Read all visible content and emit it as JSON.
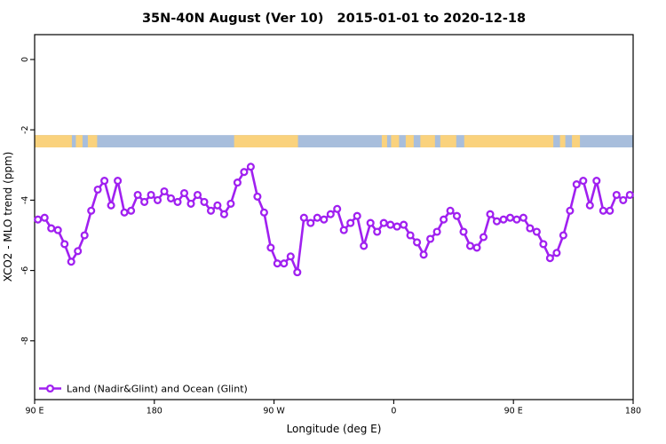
{
  "title": "35N-40N August (Ver 10)   2015-01-01 to 2020-12-18",
  "legend": {
    "label": "Land (Nadir&Glint) and Ocean (Glint)"
  },
  "colors": {
    "line": "#A020F0",
    "marker_fill": "#FFFFFF",
    "land": "#FAD27D",
    "ocean": "#A8BEDC",
    "axis": "#000000",
    "background": "#FFFFFF"
  },
  "chart_data": {
    "type": "line",
    "title": "35N-40N August (Ver 10)   2015-01-01 to 2020-12-18",
    "xlabel": "Longitude (deg E)",
    "ylabel": "XCO2 - MLO trend (ppm)",
    "x_axis": {
      "range_deg": [
        0,
        450
      ],
      "wrap_note": "axis spans 450 deg of longitude starting at 90E: 90E -> 180 -> 90W -> 0 -> 90E -> 180",
      "ticks": [
        {
          "pos": 0,
          "label": "90 E"
        },
        {
          "pos": 90,
          "label": "180"
        },
        {
          "pos": 180,
          "label": "90 W"
        },
        {
          "pos": 270,
          "label": "0"
        },
        {
          "pos": 360,
          "label": "90 E"
        },
        {
          "pos": 450,
          "label": "180"
        }
      ]
    },
    "y_axis": {
      "range": [
        0.7,
        -9.67
      ],
      "ticks": [
        "0",
        "-2",
        "-4",
        "-6",
        "-8"
      ],
      "tick_values": [
        0,
        -2,
        -4,
        -6,
        -8
      ],
      "grid": false
    },
    "series": [
      {
        "name": "Land (Nadir&Glint) and Ocean (Glint)",
        "marker": "open-circle",
        "x_deg": [
          2.5,
          7.5,
          12.5,
          17.5,
          22.5,
          27.5,
          32.5,
          37.5,
          42.5,
          47.5,
          52.5,
          57.5,
          62.5,
          67.5,
          72.5,
          77.5,
          82.5,
          87.5,
          92.5,
          97.5,
          102.5,
          107.5,
          112.5,
          117.5,
          122.5,
          127.5,
          132.5,
          137.5,
          142.5,
          147.5,
          152.5,
          157.5,
          162.5,
          167.5,
          172.5,
          177.5,
          182.5,
          187.5,
          192.5,
          197.5,
          202.5,
          207.5,
          212.5,
          217.5,
          222.5,
          227.5,
          232.5,
          237.5,
          242.5,
          247.5,
          252.5,
          257.5,
          262.5,
          267.5,
          272.5,
          277.5,
          282.5,
          287.5,
          292.5,
          297.5,
          302.5,
          307.5,
          312.5,
          317.5,
          322.5,
          327.5,
          332.5,
          337.5,
          342.5,
          347.5,
          352.5,
          357.5,
          362.5,
          367.5,
          372.5,
          377.5,
          382.5,
          387.5,
          392.5,
          397.5,
          402.5,
          407.5,
          412.5,
          417.5,
          422.5,
          427.5,
          432.5,
          437.5,
          442.5,
          447.5
        ],
        "values": [
          -4.55,
          -4.5,
          -4.8,
          -4.85,
          -5.25,
          -5.75,
          -5.45,
          -5.0,
          -4.3,
          -3.7,
          -3.45,
          -4.15,
          -3.45,
          -4.35,
          -4.3,
          -3.85,
          -4.05,
          -3.85,
          -4.0,
          -3.75,
          -3.95,
          -4.05,
          -3.8,
          -4.1,
          -3.85,
          -4.05,
          -4.3,
          -4.15,
          -4.4,
          -4.1,
          -3.5,
          -3.2,
          -3.05,
          -3.9,
          -4.35,
          -5.35,
          -5.8,
          -5.8,
          -5.6,
          -6.05,
          -4.5,
          -4.65,
          -4.5,
          -4.55,
          -4.4,
          -4.25,
          -4.85,
          -4.65,
          -4.45,
          -5.3,
          -4.65,
          -4.9,
          -4.65,
          -4.7,
          -4.75,
          -4.7,
          -5.0,
          -5.2,
          -5.55,
          -5.1,
          -4.9,
          -4.55,
          -4.3,
          -4.45,
          -4.9,
          -5.3,
          -5.35,
          -5.05,
          -4.4,
          -4.6,
          -4.55,
          -4.5,
          -4.55,
          -4.5,
          -4.8,
          -4.9,
          -5.25,
          -5.65,
          -5.5,
          -5.0,
          -4.3,
          -3.55,
          -3.45,
          -4.15,
          -3.45,
          -4.3,
          -4.3,
          -3.85,
          -4.0,
          -3.85
        ]
      }
    ],
    "map_strip": {
      "description": "35N-40N latitude world-map band drawn across the plot (tan = land, blue = ocean)",
      "value_top": -2.15,
      "value_bottom": -2.5,
      "land_segments_deg": [
        [
          0,
          28
        ],
        [
          31,
          36
        ],
        [
          40,
          47
        ],
        [
          150,
          198
        ],
        [
          261,
          265
        ],
        [
          268,
          274
        ],
        [
          279,
          285
        ],
        [
          290,
          301
        ],
        [
          305,
          317
        ],
        [
          323,
          390
        ],
        [
          395,
          399
        ],
        [
          404,
          410
        ]
      ]
    }
  }
}
